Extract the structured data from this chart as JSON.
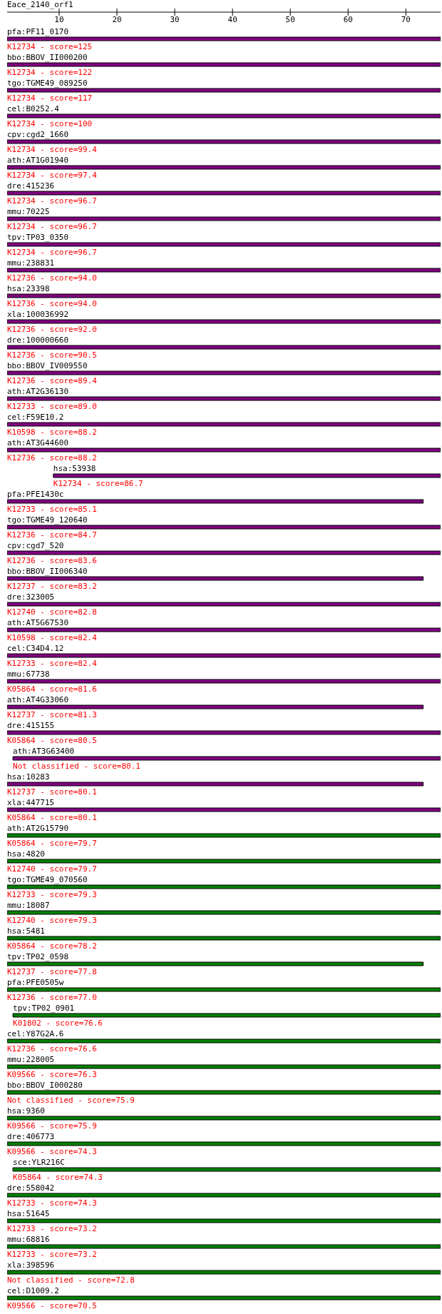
{
  "chart_data": {
    "type": "bar",
    "orientation": "horizontal",
    "title": "Eace_2140_orf1",
    "categories": [
      "pfa:PF11_0170",
      "bbo:BBOV_II000200",
      "tgo:TGME49_089250",
      "cel:B0252.4",
      "cpv:cgd2_1660",
      "ath:AT1G01940",
      "dre:415236",
      "mmu:70225",
      "tpv:TP03_0350",
      "mmu:238831",
      "hsa:23398",
      "xla:100036992",
      "dre:100000660",
      "bbo:BBOV_IV009550",
      "ath:AT2G36130",
      "cel:F59E10.2",
      "ath:AT3G44600",
      "hsa:53938",
      "pfa:PFE1430c",
      "tgo:TGME49_120640",
      "cpv:cgd7_520",
      "bbo:BBOV_II006340",
      "dre:323005",
      "ath:AT5G67530",
      "cel:C34D4.12",
      "mmu:67738",
      "ath:AT4G33060",
      "dre:415155",
      "ath:AT3G63400",
      "hsa:10283",
      "xla:447715",
      "ath:AT2G15790",
      "hsa:4820",
      "tgo:TGME49_070560",
      "mmu:18087",
      "hsa:5481",
      "tpv:TP02_0598",
      "pfa:PFE0505w",
      "tpv:TP02_0901",
      "cel:Y87G2A.6",
      "mmu:228005",
      "bbo:BBOV_I000280",
      "hsa:9360",
      "dre:406773",
      "sce:YLR216C",
      "dre:558042",
      "hsa:51645",
      "mmu:68816",
      "xla:398596",
      "cel:D1009.2"
    ],
    "base": [
      1,
      1,
      1,
      1,
      1,
      1,
      1,
      1,
      1,
      1,
      1,
      1,
      1,
      1,
      1,
      1,
      1,
      9,
      1,
      1,
      1,
      1,
      1,
      1,
      1,
      1,
      1,
      1,
      2,
      1,
      1,
      1,
      1,
      1,
      1,
      1,
      1,
      1,
      2,
      1,
      1,
      1,
      1,
      1,
      2,
      1,
      1,
      1,
      1,
      1
    ],
    "values": [
      75,
      75,
      75,
      75,
      75,
      75,
      75,
      75,
      75,
      75,
      75,
      75,
      75,
      75,
      75,
      75,
      75,
      67,
      72,
      75,
      75,
      72,
      75,
      75,
      75,
      75,
      72,
      75,
      74,
      72,
      75,
      75,
      75,
      75,
      75,
      75,
      72,
      75,
      74,
      75,
      75,
      75,
      75,
      75,
      74,
      75,
      75,
      75,
      75,
      75
    ],
    "colors": [
      "#800080",
      "#800080",
      "#800080",
      "#800080",
      "#800080",
      "#800080",
      "#800080",
      "#800080",
      "#800080",
      "#800080",
      "#800080",
      "#800080",
      "#800080",
      "#800080",
      "#800080",
      "#800080",
      "#800080",
      "#800080",
      "#800080",
      "#800080",
      "#800080",
      "#800080",
      "#800080",
      "#800080",
      "#800080",
      "#800080",
      "#800080",
      "#800080",
      "#800080",
      "#800080",
      "#800080",
      "#008000",
      "#008000",
      "#008000",
      "#008000",
      "#008000",
      "#008000",
      "#008000",
      "#008000",
      "#008000",
      "#008000",
      "#008000",
      "#008000",
      "#008000",
      "#008000",
      "#008000",
      "#008000",
      "#008000",
      "#008000",
      "#008000"
    ],
    "xlim": [
      1,
      76
    ],
    "xticks": [
      10,
      20,
      30,
      40,
      50,
      60,
      70
    ],
    "annotations": [
      {
        "text": "K12734 - score=125",
        "x": 1,
        "y": "pfa:PF11_0170"
      },
      {
        "text": "K12734 - score=122",
        "x": 1,
        "y": "bbo:BBOV_II000200"
      },
      {
        "text": "K12734 - score=117",
        "x": 1,
        "y": "tgo:TGME49_089250"
      },
      {
        "text": "K12734 - score=100",
        "x": 1,
        "y": "cel:B0252.4"
      },
      {
        "text": "K12734 - score=99.4",
        "x": 1,
        "y": "cpv:cgd2_1660"
      },
      {
        "text": "K12734 - score=97.4",
        "x": 1,
        "y": "ath:AT1G01940"
      },
      {
        "text": "K12734 - score=96.7",
        "x": 1,
        "y": "dre:415236"
      },
      {
        "text": "K12734 - score=96.7",
        "x": 1,
        "y": "mmu:70225"
      },
      {
        "text": "K12734 - score=96.7",
        "x": 1,
        "y": "tpv:TP03_0350"
      },
      {
        "text": "K12736 - score=94.0",
        "x": 1,
        "y": "mmu:238831"
      },
      {
        "text": "K12736 - score=94.0",
        "x": 1,
        "y": "hsa:23398"
      },
      {
        "text": "K12736 - score=92.0",
        "x": 1,
        "y": "xla:100036992"
      },
      {
        "text": "K12736 - score=90.5",
        "x": 1,
        "y": "dre:100000660"
      },
      {
        "text": "K12736 - score=89.4",
        "x": 1,
        "y": "bbo:BBOV_IV009550"
      },
      {
        "text": "K12733 - score=89.0",
        "x": 1,
        "y": "ath:AT2G36130"
      },
      {
        "text": "K10598 - score=88.2",
        "x": 1,
        "y": "cel:F59E10.2"
      },
      {
        "text": "K12736 - score=88.2",
        "x": 1,
        "y": "ath:AT3G44600"
      },
      {
        "text": "K12734 - score=86.7",
        "x": 9,
        "y": "hsa:53938"
      },
      {
        "text": "K12733 - score=85.1",
        "x": 1,
        "y": "pfa:PFE1430c"
      },
      {
        "text": "K12736 - score=84.7",
        "x": 1,
        "y": "tgo:TGME49_120640"
      },
      {
        "text": "K12736 - score=83.6",
        "x": 1,
        "y": "cpv:cgd7_520"
      },
      {
        "text": "K12737 - score=83.2",
        "x": 1,
        "y": "bbo:BBOV_II006340"
      },
      {
        "text": "K12740 - score=82.8",
        "x": 1,
        "y": "dre:323005"
      },
      {
        "text": "K10598 - score=82.4",
        "x": 1,
        "y": "ath:AT5G67530"
      },
      {
        "text": "K12733 - score=82.4",
        "x": 1,
        "y": "cel:C34D4.12"
      },
      {
        "text": "K05864 - score=81.6",
        "x": 1,
        "y": "mmu:67738"
      },
      {
        "text": "K12737 - score=81.3",
        "x": 1,
        "y": "ath:AT4G33060"
      },
      {
        "text": "K05864 - score=80.5",
        "x": 1,
        "y": "dre:415155"
      },
      {
        "text": "Not classified - score=80.1",
        "x": 2,
        "y": "ath:AT3G63400"
      },
      {
        "text": "K12737 - score=80.1",
        "x": 1,
        "y": "hsa:10283"
      },
      {
        "text": "K05864 - score=80.1",
        "x": 1,
        "y": "xla:447715"
      },
      {
        "text": "K05864 - score=79.7",
        "x": 1,
        "y": "ath:AT2G15790"
      },
      {
        "text": "K12740 - score=79.7",
        "x": 1,
        "y": "hsa:4820"
      },
      {
        "text": "K12733 - score=79.3",
        "x": 1,
        "y": "tgo:TGME49_070560"
      },
      {
        "text": "K12740 - score=79.3",
        "x": 1,
        "y": "mmu:18087"
      },
      {
        "text": "K05864 - score=78.2",
        "x": 1,
        "y": "hsa:5481"
      },
      {
        "text": "K12737 - score=77.8",
        "x": 1,
        "y": "tpv:TP02_0598"
      },
      {
        "text": "K12736 - score=77.0",
        "x": 1,
        "y": "pfa:PFE0505w"
      },
      {
        "text": "K01802 - score=76.6",
        "x": 2,
        "y": "tpv:TP02_0901"
      },
      {
        "text": "K12736 - score=76.6",
        "x": 1,
        "y": "cel:Y87G2A.6"
      },
      {
        "text": "K09566 - score=76.3",
        "x": 1,
        "y": "mmu:228005"
      },
      {
        "text": "Not classified - score=75.9",
        "x": 1,
        "y": "bbo:BBOV_I000280"
      },
      {
        "text": "K09566 - score=75.9",
        "x": 1,
        "y": "hsa:9360"
      },
      {
        "text": "K09566 - score=74.3",
        "x": 1,
        "y": "dre:406773"
      },
      {
        "text": "K05864 - score=74.3",
        "x": 2,
        "y": "sce:YLR216C"
      },
      {
        "text": "K12733 - score=74.3",
        "x": 1,
        "y": "dre:558042"
      },
      {
        "text": "K12733 - score=73.2",
        "x": 1,
        "y": "hsa:51645"
      },
      {
        "text": "K12733 - score=73.2",
        "x": 1,
        "y": "mmu:68816"
      },
      {
        "text": "Not classified - score=72.8",
        "x": 1,
        "y": "xla:398596"
      },
      {
        "text": "K09566 - score=70.5",
        "x": 1,
        "y": "cel:D1009.2"
      }
    ]
  }
}
